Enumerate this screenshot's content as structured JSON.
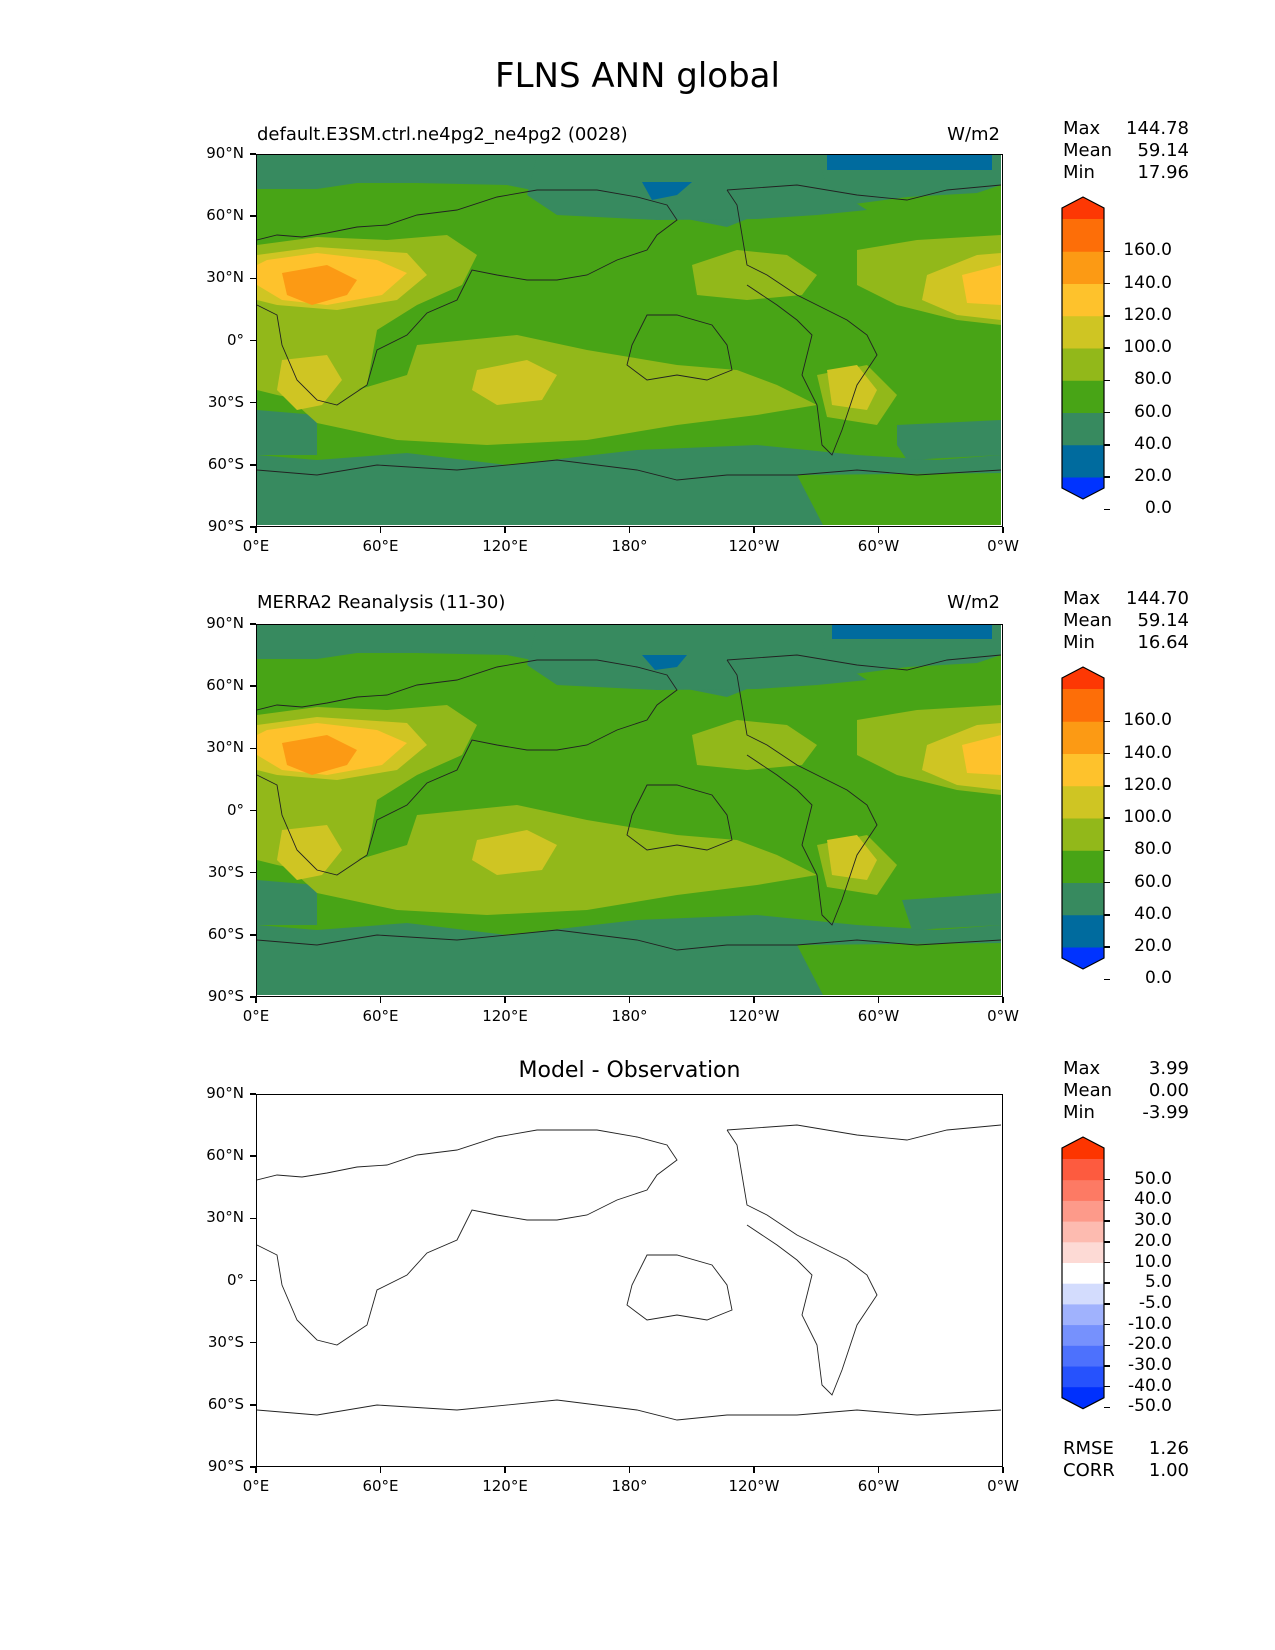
{
  "figure": {
    "title": "FLNS ANN global"
  },
  "panels": [
    {
      "title": "default.E3SM.ctrl.ne4pg2_ne4pg2 (0028)",
      "units": "W/m2",
      "stats": {
        "labels": [
          "Max",
          "Mean",
          "Min"
        ],
        "values": [
          "144.78",
          "59.14",
          "17.96"
        ]
      },
      "colorbar": {
        "labels": [
          "160.0",
          "140.0",
          "120.0",
          "100.0",
          "80.0",
          "60.0",
          "40.0",
          "20.0",
          "0.0"
        ]
      }
    },
    {
      "title": "MERRA2 Reanalysis (11-30)",
      "units": "W/m2",
      "stats": {
        "labels": [
          "Max",
          "Mean",
          "Min"
        ],
        "values": [
          "144.70",
          "59.14",
          "16.64"
        ]
      },
      "colorbar": {
        "labels": [
          "160.0",
          "140.0",
          "120.0",
          "100.0",
          "80.0",
          "60.0",
          "40.0",
          "20.0",
          "0.0"
        ]
      }
    },
    {
      "title": "Model - Observation",
      "units": "",
      "stats": {
        "labels": [
          "Max",
          "Mean",
          "Min"
        ],
        "values": [
          "3.99",
          "0.00",
          "-3.99"
        ]
      },
      "colorbar": {
        "labels": [
          "50.0",
          "40.0",
          "30.0",
          "20.0",
          "10.0",
          "5.0",
          "-5.0",
          "-10.0",
          "-20.0",
          "-30.0",
          "-40.0",
          "-50.0"
        ]
      },
      "metrics": {
        "labels": [
          "RMSE",
          "CORR"
        ],
        "values": [
          "1.26",
          "1.00"
        ]
      }
    }
  ],
  "axes": {
    "lat_labels": [
      "90°N",
      "60°N",
      "30°N",
      "0°",
      "30°S",
      "60°S",
      "90°S"
    ],
    "lon_labels": [
      "0°E",
      "60°E",
      "120°E",
      "180°",
      "120°W",
      "60°W",
      "0°W"
    ]
  },
  "colors": {
    "field_levels": [
      "#0033ff",
      "#006b9e",
      "#378a5f",
      "#48a416",
      "#92b81a",
      "#cfc523",
      "#fec22c",
      "#fc9a14",
      "#fd6e08",
      "#fd3804"
    ],
    "diff_levels": [
      "#0030fd",
      "#2652fd",
      "#4d71fd",
      "#7691fd",
      "#a0b2fd",
      "#d3dcfd",
      "#ffffff",
      "#fddad5",
      "#fdbbb0",
      "#fd9a8a",
      "#fd7a64",
      "#fd5b3f",
      "#fd3500"
    ]
  }
}
